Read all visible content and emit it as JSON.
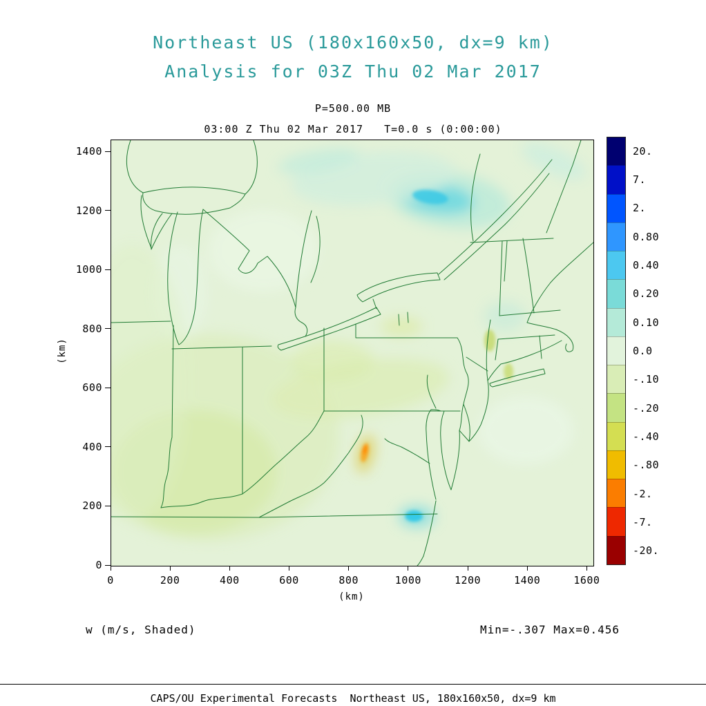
{
  "header": {
    "title_line1": "Northeast US (180x160x50, dx=9 km)",
    "title_line2": "Analysis for 03Z Thu 02 Mar 2017"
  },
  "plot": {
    "pressure_label": "P=500.00 MB",
    "time_label": "03:00 Z Thu 02 Mar 2017   T=0.0 s (0:00:00)",
    "xlabel": "(km)",
    "ylabel": "(km)",
    "field_label": "w (m/s, Shaded)",
    "minmax_label": "Min=-.307 Max=0.456"
  },
  "footer": {
    "credit": "CAPS/OU Experimental Forecasts  Northeast US, 180x160x50, dx=9 km"
  },
  "colors": {
    "title_teal": "#2a9a9a",
    "map_line": "#1f7a33",
    "map_background": "#e4f2d8"
  },
  "chart_data": {
    "type": "heatmap",
    "title": "Northeast US (180x160x50, dx=9 km)",
    "subtitle": "Analysis for 03Z Thu 02 Mar 2017",
    "level": "P=500.00 MB",
    "valid_time": "03:00 Z Thu 02 Mar 2017",
    "time_offset": "T=0.0 s (0:00:00)",
    "field": "w (m/s, Shaded)",
    "units": "m/s",
    "min_value": -0.307,
    "max_value": 0.456,
    "xlabel": "(km)",
    "ylabel": "(km)",
    "xlim": [
      0,
      1620
    ],
    "ylim": [
      0,
      1440
    ],
    "x_ticks": [
      0,
      200,
      400,
      600,
      800,
      1000,
      1200,
      1400,
      1600
    ],
    "y_ticks": [
      0,
      200,
      400,
      600,
      800,
      1000,
      1200,
      1400
    ],
    "grid": false,
    "legend_position": "right-colorbar",
    "colorbar": {
      "levels": [
        {
          "label": "20.",
          "color": "#000070"
        },
        {
          "label": "7.",
          "color": "#0010c8"
        },
        {
          "label": "2.",
          "color": "#0055ff"
        },
        {
          "label": "0.80",
          "color": "#2f96ff"
        },
        {
          "label": "0.40",
          "color": "#4cc8f0"
        },
        {
          "label": "0.20",
          "color": "#7adbd8"
        },
        {
          "label": "0.10",
          "color": "#b4ead8"
        },
        {
          "label": "0.0",
          "color": "#e2f3dc"
        },
        {
          "label": "-.10",
          "color": "#d9edb6"
        },
        {
          "label": "-.20",
          "color": "#c4e383"
        },
        {
          "label": "-.40",
          "color": "#d4de52"
        },
        {
          "label": "-.80",
          "color": "#f0bc00"
        },
        {
          "label": "-2.",
          "color": "#fb7d00"
        },
        {
          "label": "-7.",
          "color": "#ee2800"
        },
        {
          "label": "-20.",
          "color": "#9a0000"
        }
      ]
    },
    "shaded_features": [
      {
        "name": "ne-updraft-halo",
        "x_km": 1133,
        "y_km": 1239,
        "rx_km": 209,
        "ry_km": 94,
        "rot": 8,
        "color": "#b9ead9",
        "opacity": 0.8,
        "layer": "soft"
      },
      {
        "name": "ne-updraft-mid",
        "x_km": 1091,
        "y_km": 1244,
        "rx_km": 128,
        "ry_km": 51,
        "rot": 8,
        "color": "#6fd8e0",
        "opacity": 0.9,
        "layer": "soft"
      },
      {
        "name": "ne-updraft-core",
        "x_km": 1072,
        "y_km": 1248,
        "rx_km": 60,
        "ry_km": 23,
        "rot": 8,
        "color": "#3dcae4",
        "opacity": 0.9,
        "layer": "core"
      },
      {
        "name": "north-pale-cyan",
        "x_km": 882,
        "y_km": 1311,
        "rx_km": 278,
        "ry_km": 89,
        "rot": -5,
        "color": "#d2eedd",
        "opacity": 0.85,
        "layer": "soft"
      },
      {
        "name": "north-cyan-streak",
        "x_km": 696,
        "y_km": 1370,
        "rx_km": 139,
        "ry_km": 37,
        "rot": -10,
        "color": "#c4ecdc",
        "opacity": 0.8,
        "layer": "soft"
      },
      {
        "name": "topright-cyan",
        "x_km": 1486,
        "y_km": 1370,
        "rx_km": 116,
        "ry_km": 42,
        "rot": 25,
        "color": "#cdeede",
        "opacity": 0.8,
        "layer": "soft"
      },
      {
        "name": "vermont-pale-spot",
        "x_km": 1323,
        "y_km": 844,
        "rx_km": 70,
        "ry_km": 51,
        "rot": 0,
        "color": "#cdecd9",
        "opacity": 0.85,
        "layer": "soft"
      },
      {
        "name": "chesapeake-updraft-halo",
        "x_km": 1026,
        "y_km": 166,
        "rx_km": 60,
        "ry_km": 37,
        "rot": 0,
        "color": "#8fdfdf",
        "opacity": 0.9,
        "layer": "soft"
      },
      {
        "name": "chesapeake-updraft-core",
        "x_km": 1017,
        "y_km": 168,
        "rx_km": 30,
        "ry_km": 19,
        "rot": 0,
        "color": "#2fc8e8",
        "opacity": 0.95,
        "layer": "core"
      },
      {
        "name": "wv-downdraft-halo",
        "x_km": 854,
        "y_km": 379,
        "rx_km": 28,
        "ry_km": 65,
        "rot": 12,
        "color": "#e0d069",
        "opacity": 0.9,
        "layer": "soft"
      },
      {
        "name": "wv-downdraft-core",
        "x_km": 852,
        "y_km": 383,
        "rx_km": 12,
        "ry_km": 33,
        "rot": 12,
        "color": "#f6a825",
        "opacity": 0.95,
        "layer": "core"
      },
      {
        "name": "wv-downdraft-hot",
        "x_km": 852,
        "y_km": 393,
        "rx_km": 7,
        "ry_km": 16,
        "rot": 12,
        "color": "#ff8b00",
        "opacity": 0.95,
        "layer": "core"
      },
      {
        "name": "sw-green-wash",
        "x_km": 325,
        "y_km": 435,
        "rx_km": 441,
        "ry_km": 351,
        "rot": 0,
        "color": "#dcedbc",
        "opacity": 0.7,
        "layer": "soft"
      },
      {
        "name": "sw-green-core",
        "x_km": 279,
        "y_km": 318,
        "rx_km": 278,
        "ry_km": 210,
        "rot": 0,
        "color": "#d5e9a9",
        "opacity": 0.75,
        "layer": "soft"
      },
      {
        "name": "pa-green-band",
        "x_km": 836,
        "y_km": 599,
        "rx_km": 302,
        "ry_km": 94,
        "rot": -8,
        "color": "#dcedb4",
        "opacity": 0.7,
        "layer": "soft"
      },
      {
        "name": "nj-olive-spot",
        "x_km": 1272,
        "y_km": 762,
        "rx_km": 19,
        "ry_km": 37,
        "rot": 0,
        "color": "#c6da74",
        "opacity": 0.9,
        "layer": "core"
      },
      {
        "name": "hudson-olive-spot",
        "x_km": 1335,
        "y_km": 657,
        "rx_km": 16,
        "ry_km": 28,
        "rot": 0,
        "color": "#cadd7a",
        "opacity": 0.9,
        "layer": "core"
      },
      {
        "name": "ny-yellow-tinge",
        "x_km": 975,
        "y_km": 809,
        "rx_km": 70,
        "ry_km": 33,
        "rot": 0,
        "color": "#dcea9e",
        "opacity": 0.6,
        "layer": "soft"
      },
      {
        "name": "erie-south-yellow",
        "x_km": 743,
        "y_km": 692,
        "rx_km": 139,
        "ry_km": 70,
        "rot": 0,
        "color": "#daecac",
        "opacity": 0.6,
        "layer": "soft"
      },
      {
        "name": "michigan-mint-patch",
        "x_km": 511,
        "y_km": 1066,
        "rx_km": 186,
        "ry_km": 140,
        "rot": 0,
        "color": "#eaf6e4",
        "opacity": 0.8,
        "layer": "soft"
      },
      {
        "name": "se-mint-patch",
        "x_km": 1393,
        "y_km": 458,
        "rx_km": 162,
        "ry_km": 117,
        "rot": 0,
        "color": "#eaf6e7",
        "opacity": 0.7,
        "layer": "soft"
      },
      {
        "name": "lake-michigan-pale",
        "x_km": 232,
        "y_km": 926,
        "rx_km": 93,
        "ry_km": 164,
        "rot": 0,
        "color": "#e7f5e3",
        "opacity": 0.7,
        "layer": "soft"
      },
      {
        "name": "west-green-band",
        "x_km": 70,
        "y_km": 622,
        "rx_km": 186,
        "ry_km": 468,
        "rot": 0,
        "color": "#def0c6",
        "opacity": 0.5,
        "layer": "soft"
      }
    ]
  }
}
